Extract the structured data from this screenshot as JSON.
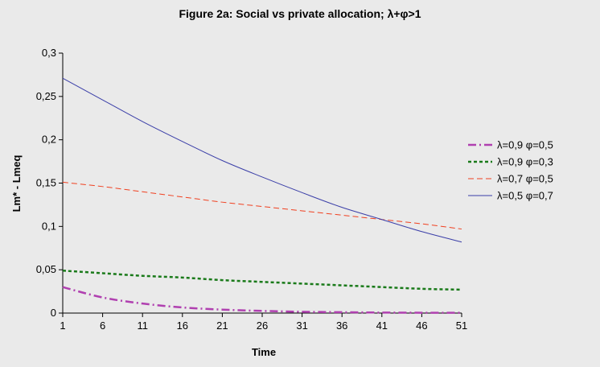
{
  "chart_data": {
    "type": "line",
    "title": "Figure 2a: Social vs private allocation; λ+φ>1",
    "xlabel": "Time",
    "ylabel": "Lm* - Lmeq",
    "xlim": [
      1,
      51
    ],
    "ylim": [
      0,
      0.3
    ],
    "x_ticks": [
      "1",
      "6",
      "11",
      "16",
      "21",
      "26",
      "31",
      "36",
      "41",
      "46",
      "51"
    ],
    "y_ticks": [
      "0",
      "0,05",
      "0,1",
      "0,15",
      "0,2",
      "0,25",
      "0,3"
    ],
    "grid": false,
    "legend_position": "right",
    "x": [
      1,
      6,
      11,
      16,
      21,
      26,
      31,
      36,
      41,
      46,
      51
    ],
    "series": [
      {
        "name": "λ=0,9 φ=0,5",
        "color": "#b040b0",
        "dash": "dash-dot",
        "values": [
          0.03,
          0.018,
          0.011,
          0.0065,
          0.004,
          0.0025,
          0.0015,
          0.001,
          0.0006,
          0.0004,
          0.0003
        ]
      },
      {
        "name": "λ=0,9 φ=0,3",
        "color": "#1a7a1a",
        "dash": "dotted",
        "values": [
          0.049,
          0.046,
          0.043,
          0.041,
          0.038,
          0.036,
          0.034,
          0.032,
          0.03,
          0.028,
          0.027
        ]
      },
      {
        "name": "λ=0,7 φ=0,5",
        "color": "#f04020",
        "dash": "dashed",
        "values": [
          0.151,
          0.146,
          0.14,
          0.134,
          0.128,
          0.123,
          0.118,
          0.113,
          0.108,
          0.103,
          0.097
        ]
      },
      {
        "name": "λ=0,5 φ=0,7",
        "color": "#3b3fa8",
        "dash": "solid",
        "values": [
          0.271,
          0.246,
          0.221,
          0.198,
          0.176,
          0.157,
          0.139,
          0.122,
          0.108,
          0.094,
          0.082
        ]
      }
    ]
  }
}
